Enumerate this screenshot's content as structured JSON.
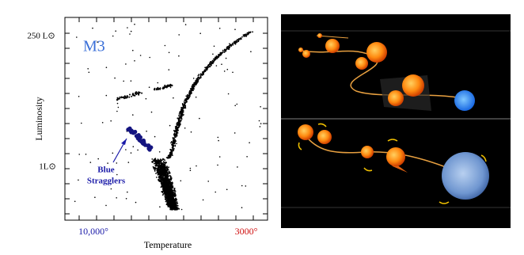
{
  "figure": {
    "cluster_label": "M3",
    "y_axis_label": "Luminosity",
    "y_top_label": "250 L⊙",
    "y_low_label": "1L⊙",
    "x_axis_label": "Temperature",
    "x_hot_label": "10,000°",
    "x_cool_label": "3000°",
    "annotation_line1": "Blue",
    "annotation_line2": "Stragglers"
  }
}
